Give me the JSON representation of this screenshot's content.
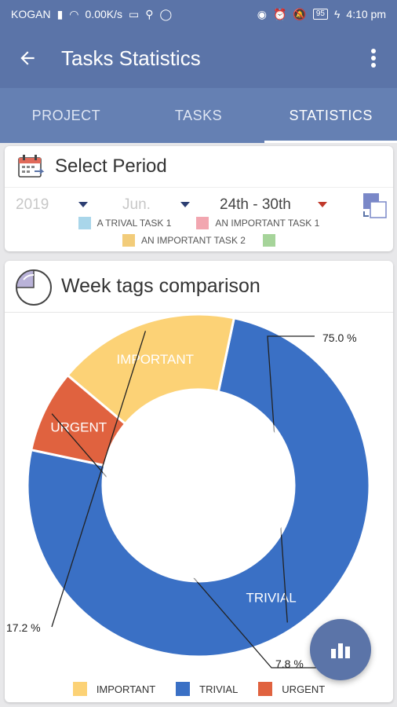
{
  "status_bar": {
    "carrier": "KOGAN",
    "speed": "0.00K/s",
    "battery": "95",
    "time": "4:10 pm"
  },
  "app_bar": {
    "title": "Tasks Statistics"
  },
  "tabs": [
    {
      "label": "PROJECT",
      "active": false
    },
    {
      "label": "TASKS",
      "active": false
    },
    {
      "label": "STATISTICS",
      "active": true
    }
  ],
  "period": {
    "title": "Select Period",
    "year": "2019",
    "month": "Jun.",
    "week": "24th - 30th"
  },
  "task_legend": {
    "row1": [
      {
        "label": "A TRIVAL TASK 1",
        "color": "#a9d6ea"
      },
      {
        "label": "AN IMPORTANT TASK 1",
        "color": "#f2a6b0"
      }
    ],
    "row2": [
      {
        "label": "AN IMPORTANT TASK 2",
        "color": "#f2cc7a"
      },
      {
        "label": "",
        "color": "#a6d49a"
      }
    ]
  },
  "chart": {
    "title": "Week tags comparison",
    "fab_icon": "bar-chart-icon"
  },
  "chart_data": {
    "type": "pie",
    "title": "Week tags comparison",
    "donut": true,
    "categories": [
      "TRIVIAL",
      "URGENT",
      "IMPORTANT"
    ],
    "values": [
      75.0,
      7.8,
      17.2
    ],
    "value_labels": [
      "75.0 %",
      "7.8 %",
      "17.2 %"
    ],
    "colors": [
      "#3a70c5",
      "#e0623f",
      "#fcd276"
    ],
    "legend": [
      "IMPORTANT",
      "TRIVIAL",
      "URGENT"
    ],
    "legend_colors": [
      "#fcd276",
      "#3a70c5",
      "#e0623f"
    ],
    "legend_placement": "bottom"
  }
}
